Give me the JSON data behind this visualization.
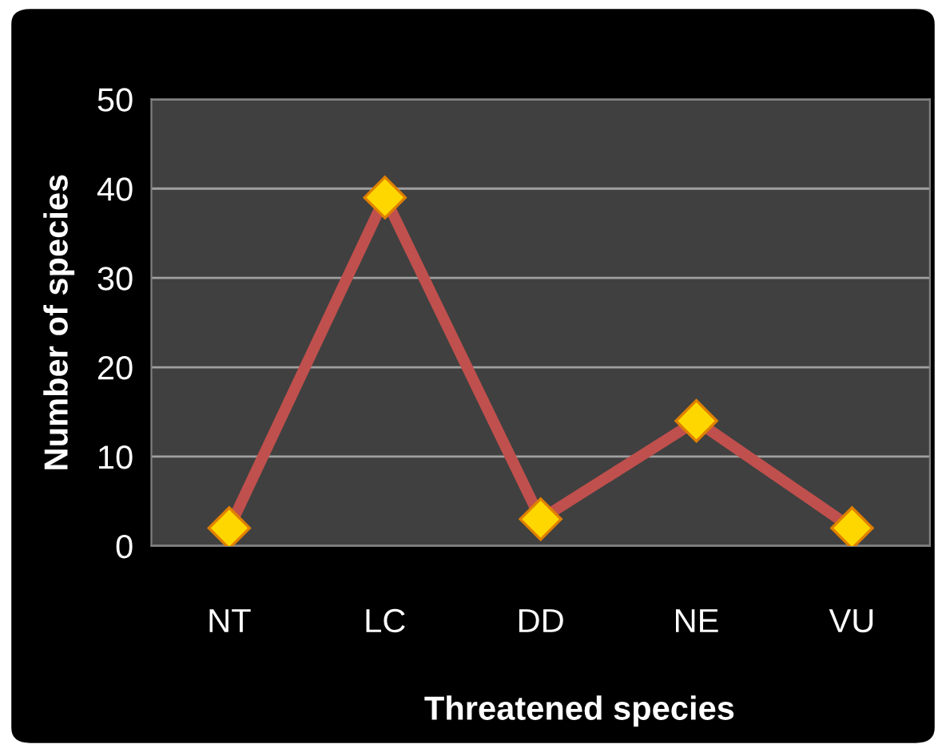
{
  "chart_data": {
    "type": "line",
    "xlabel": "Threatened species",
    "ylabel": "Number of species",
    "categories": [
      "NT",
      "LC",
      "DD",
      "NE",
      "VU"
    ],
    "series": [
      {
        "color": "#c0504d",
        "values": [
          2,
          39,
          3,
          14,
          2
        ]
      }
    ],
    "ylim": [
      0,
      50
    ],
    "yticks": [
      0,
      10,
      20,
      30,
      40,
      50
    ],
    "grid": "y",
    "marker": "diamond",
    "line_style": "solid"
  }
}
